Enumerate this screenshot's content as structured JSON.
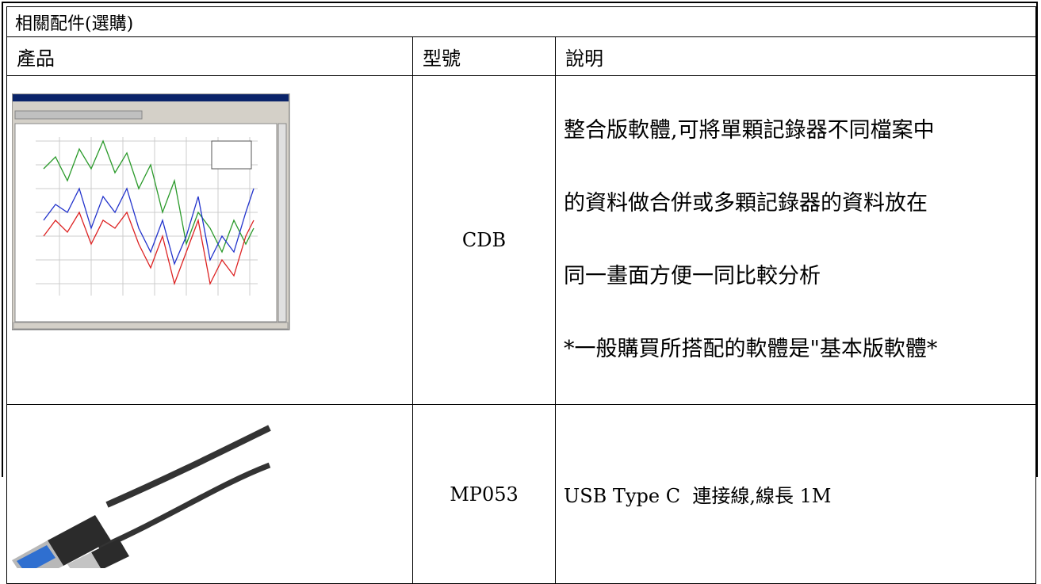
{
  "table": {
    "title": "相關配件(選購)",
    "headers": [
      "產品",
      "型號",
      "說明"
    ],
    "rows": [
      {
        "model": "CDB",
        "description": [
          "整合版軟體,可將單顆記錄器不同檔案中",
          "的資料做合併或多顆記錄器的資料放在",
          "同一畫面方便一同比較分析",
          "*一般購買所搭配的軟體是\"基本版軟體*"
        ]
      },
      {
        "model": "MP053",
        "description": [
          "USB Type C  連接線,線長 1M"
        ]
      }
    ]
  }
}
